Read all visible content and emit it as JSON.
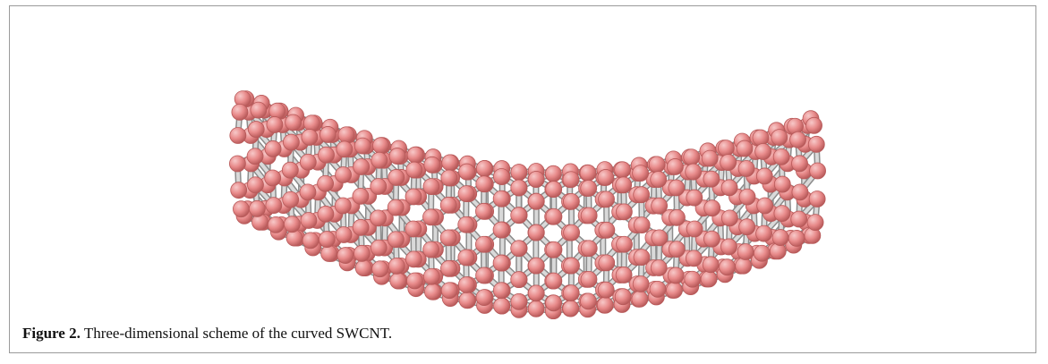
{
  "figure": {
    "label": "Figure 2.",
    "caption": "Three-dimensional scheme of the curved SWCNT."
  },
  "colors": {
    "atom_fill": "#e88a8a",
    "atom_highlight": "#f7c9c9",
    "atom_shadow": "#b85a5a",
    "bond": "#d9d9d9",
    "bond_edge": "#8c8c8c",
    "frame_border": "#9a9a9a"
  }
}
